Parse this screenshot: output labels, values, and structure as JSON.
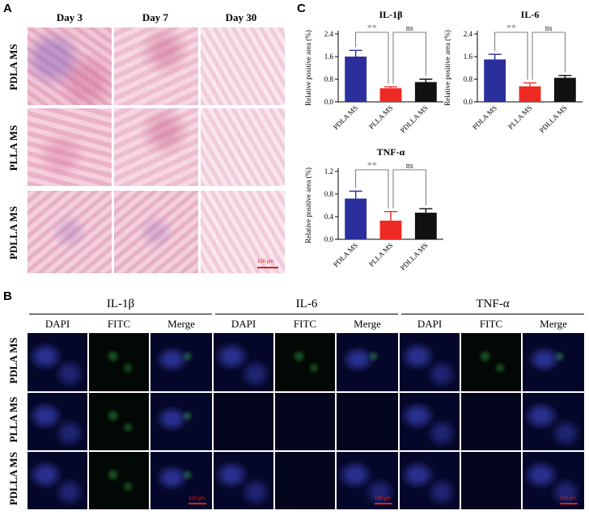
{
  "panel_labels": {
    "a": "A",
    "b": "B",
    "c": "C"
  },
  "panel_a": {
    "columns": [
      "Day 3",
      "Day 7",
      "Day 30"
    ],
    "rows": [
      "PDLA MS",
      "PLLA MS",
      "PDLLA MS"
    ],
    "scale_bar": "100 μm"
  },
  "panel_b": {
    "groups": [
      {
        "title": "IL-1β",
        "channels": [
          "DAPI",
          "FITC",
          "Merge"
        ]
      },
      {
        "title": "IL-6",
        "channels": [
          "DAPI",
          "FITC",
          "Merge"
        ]
      },
      {
        "title": "TNF-α",
        "channels": [
          "DAPI",
          "FITC",
          "Merge"
        ]
      }
    ],
    "rows": [
      "PDLA MS",
      "PLLA MS",
      "PDLLA MS"
    ],
    "scale_bar": "100 μm"
  },
  "chart_data": [
    {
      "type": "bar",
      "title": "IL-1β",
      "ylabel": "Relative positive area (%)",
      "categories": [
        "PDLA MS",
        "PLLA MS",
        "PDLLA MS"
      ],
      "values": [
        1.6,
        0.48,
        0.7
      ],
      "errors": [
        0.22,
        0.05,
        0.1
      ],
      "colors": [
        "#2b2f9e",
        "#ee2a24",
        "#111111"
      ],
      "ylim": [
        0,
        2.4
      ],
      "yticks": [
        "0.0",
        "0.8",
        "1.6",
        "2.4"
      ],
      "significance": [
        {
          "from": 0,
          "to": 1,
          "label": "**"
        },
        {
          "from": 1,
          "to": 2,
          "label": "ns"
        }
      ]
    },
    {
      "type": "bar",
      "title": "IL-6",
      "ylabel": "Relative positive area (%)",
      "categories": [
        "PDLA MS",
        "PLLA MS",
        "PDLLA MS"
      ],
      "values": [
        1.5,
        0.55,
        0.85
      ],
      "errors": [
        0.18,
        0.12,
        0.08
      ],
      "colors": [
        "#2b2f9e",
        "#ee2a24",
        "#111111"
      ],
      "ylim": [
        0,
        2.4
      ],
      "yticks": [
        "0.0",
        "0.8",
        "1.6",
        "2.4"
      ],
      "significance": [
        {
          "from": 0,
          "to": 1,
          "label": "**"
        },
        {
          "from": 1,
          "to": 2,
          "label": "ns"
        }
      ]
    },
    {
      "type": "bar",
      "title": "TNF-α",
      "ylabel": "Relative positive area (%)",
      "categories": [
        "PDLA MS",
        "PLLA MS",
        "PDLLA MS"
      ],
      "values": [
        0.72,
        0.33,
        0.47
      ],
      "errors": [
        0.13,
        0.16,
        0.07
      ],
      "colors": [
        "#2b2f9e",
        "#ee2a24",
        "#111111"
      ],
      "ylim": [
        0,
        1.2
      ],
      "yticks": [
        "0.0",
        "0.4",
        "0.8",
        "1.2"
      ],
      "significance": [
        {
          "from": 0,
          "to": 1,
          "label": "**"
        },
        {
          "from": 1,
          "to": 2,
          "label": "ns"
        }
      ]
    }
  ]
}
